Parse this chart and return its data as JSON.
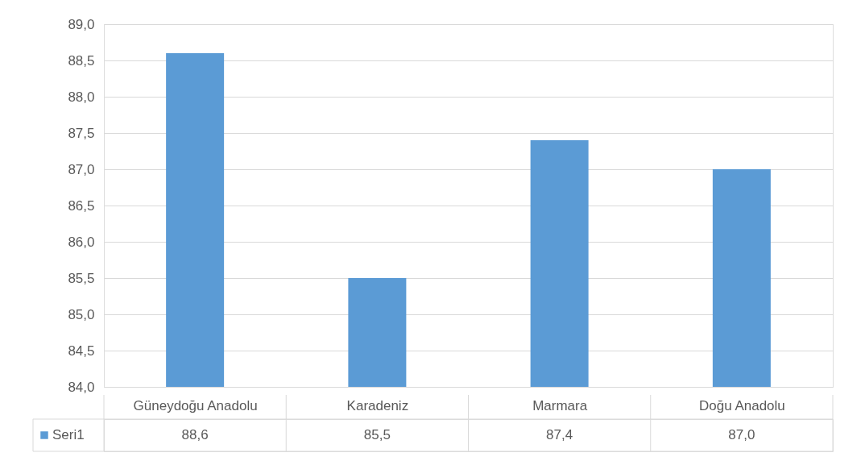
{
  "chart_data": {
    "type": "bar",
    "categories": [
      "Güneydoğu Anadolu",
      "Karadeniz",
      "Marmara",
      "Doğu Anadolu"
    ],
    "series": [
      {
        "name": "Seri1",
        "color": "#5b9bd5",
        "values": [
          88.6,
          85.5,
          87.4,
          87.0
        ],
        "value_labels": [
          "88,6",
          "85,5",
          "87,4",
          "87,0"
        ]
      }
    ],
    "ylim": [
      84,
      89
    ],
    "yticks": [
      {
        "value": 84,
        "label": "84,0"
      },
      {
        "value": 84.5,
        "label": "84,5"
      },
      {
        "value": 85,
        "label": "85,0"
      },
      {
        "value": 85.5,
        "label": "85,5"
      },
      {
        "value": 86,
        "label": "86,0"
      },
      {
        "value": 86.5,
        "label": "86,5"
      },
      {
        "value": 87,
        "label": "87,0"
      },
      {
        "value": 87.5,
        "label": "87,5"
      },
      {
        "value": 88,
        "label": "88,0"
      },
      {
        "value": 88.5,
        "label": "88,5"
      },
      {
        "value": 89,
        "label": "89,0"
      }
    ],
    "grid": "y",
    "legend": "bottom"
  }
}
